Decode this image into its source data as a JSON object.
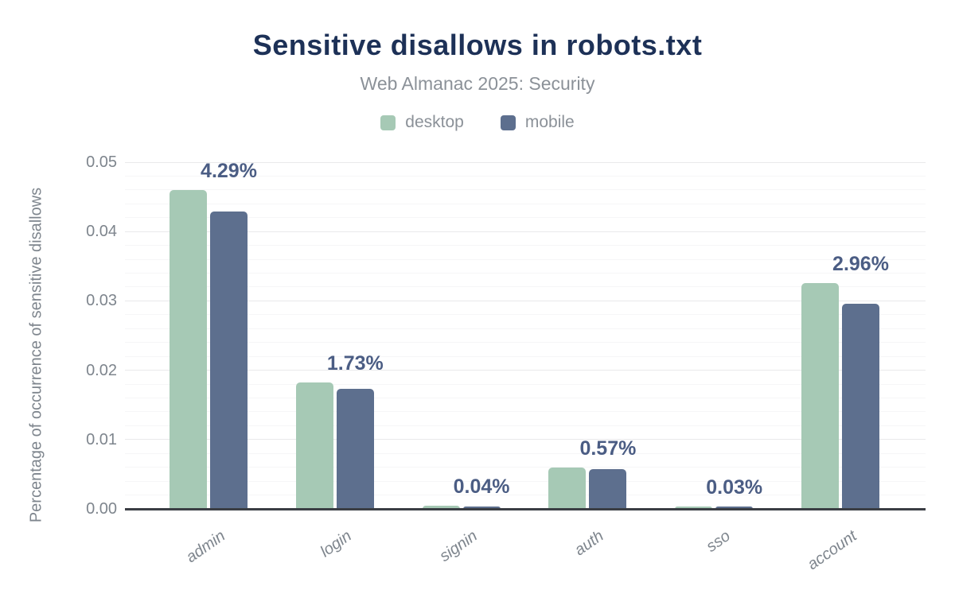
{
  "title": "Sensitive disallows in robots.txt",
  "subtitle": "Web Almanac 2025: Security",
  "legend": [
    {
      "label": "desktop",
      "color": "#a6c9b5"
    },
    {
      "label": "mobile",
      "color": "#5d6f8e"
    }
  ],
  "colors": {
    "title": "#1d3157",
    "subtitle_text": "#8b9198",
    "data_label": "#4b5d84",
    "axis_text": "#7e858d",
    "axis_line": "#3b3e44",
    "grid_major": "#e9e9eb",
    "grid_minor": "#f6f6f7",
    "desktop_bar": "#a6c9b5",
    "mobile_bar": "#5d6f8e"
  },
  "chart_data": {
    "type": "bar",
    "title": "Sensitive disallows in robots.txt",
    "subtitle": "Web Almanac 2025: Security",
    "categories": [
      "admin",
      "login",
      "signin",
      "auth",
      "sso",
      "account"
    ],
    "series": [
      {
        "name": "desktop",
        "color": "#a6c9b5",
        "values": [
          0.046,
          0.0182,
          0.0005,
          0.006,
          0.0003,
          0.0326
        ]
      },
      {
        "name": "mobile",
        "color": "#5d6f8e",
        "values": [
          0.0429,
          0.0173,
          0.0004,
          0.0057,
          0.0003,
          0.0296
        ]
      }
    ],
    "data_labels": [
      "4.29%",
      "1.73%",
      "0.04%",
      "0.57%",
      "0.03%",
      "2.96%"
    ],
    "data_labels_series": "mobile",
    "xlabel": "",
    "ylabel": "Percentage of occurrence of sensitive disallows",
    "yticks": [
      "0.00",
      "0.01",
      "0.02",
      "0.03",
      "0.04",
      "0.05"
    ],
    "ylim": [
      0,
      0.05
    ],
    "minor_grid_step": 0.002,
    "grid": "horizontal",
    "legend_position": "top"
  }
}
